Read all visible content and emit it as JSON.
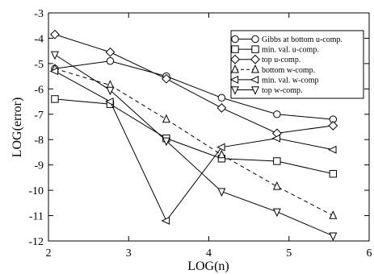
{
  "chart_data": {
    "type": "line",
    "title": "",
    "xlabel": "LOG(n)",
    "ylabel": "LOG(error)",
    "xlim": [
      2,
      6
    ],
    "ylim": [
      -12,
      -3
    ],
    "xticks": [
      2,
      3,
      4,
      5,
      6
    ],
    "yticks": [
      -12,
      -11,
      -10,
      -9,
      -8,
      -7,
      -6,
      -5,
      -4,
      -3
    ],
    "xtick_labels": [
      "2",
      "3",
      "4",
      "5",
      "6"
    ],
    "ytick_labels": [
      "-12",
      "-11",
      "-10",
      "-9",
      "-8",
      "-7",
      "-6",
      "-5",
      "-4",
      "-3"
    ],
    "grid": false,
    "legend_position": "top-right",
    "series": [
      {
        "name": "Gibbs at bottom u-comp.",
        "marker": "circle",
        "dashed": false,
        "x": [
          2.08,
          2.77,
          3.47,
          4.16,
          4.85,
          5.55
        ],
        "y": [
          -5.2,
          -4.9,
          -5.5,
          -6.35,
          -7.0,
          -7.2
        ]
      },
      {
        "name": "min. val. u-comp.",
        "marker": "square",
        "dashed": false,
        "x": [
          2.08,
          2.77,
          3.47,
          4.16,
          4.85,
          5.55
        ],
        "y": [
          -6.4,
          -6.6,
          -7.95,
          -8.75,
          -8.85,
          -9.35
        ]
      },
      {
        "name": "top u-comp.",
        "marker": "diamond",
        "dashed": false,
        "x": [
          2.08,
          2.77,
          3.47,
          4.16,
          4.85,
          5.55
        ],
        "y": [
          -3.85,
          -4.55,
          -5.6,
          -6.75,
          -7.75,
          -7.45
        ]
      },
      {
        "name": "bottom w-comp.",
        "marker": "triangle-up",
        "dashed": true,
        "x": [
          2.08,
          2.77,
          3.47,
          4.16,
          4.85,
          5.55
        ],
        "y": [
          -5.2,
          -5.85,
          -7.2,
          -8.6,
          -9.85,
          -11.0
        ]
      },
      {
        "name": "min. val. w-comp",
        "marker": "triangle-left",
        "dashed": false,
        "x": [
          2.08,
          2.77,
          3.47,
          4.16,
          4.85,
          5.55
        ],
        "y": [
          -5.3,
          -6.5,
          -11.2,
          -8.3,
          -7.95,
          -8.4
        ]
      },
      {
        "name": "top w-comp.",
        "marker": "triangle-down",
        "dashed": false,
        "x": [
          2.08,
          2.77,
          3.47,
          4.16,
          4.85,
          5.55
        ],
        "y": [
          -4.65,
          -6.05,
          -8.05,
          -10.05,
          -10.85,
          -11.8
        ]
      }
    ]
  }
}
